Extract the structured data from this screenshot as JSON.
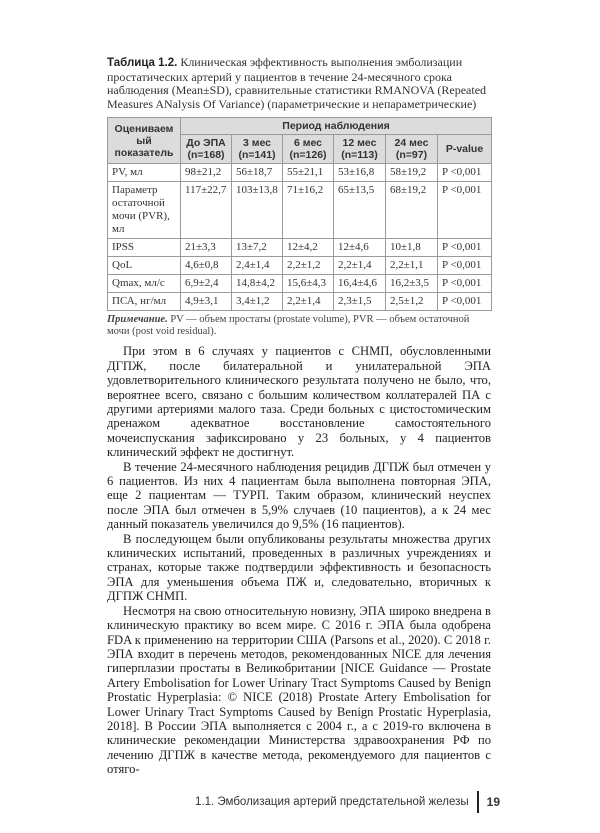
{
  "caption": {
    "label": "Таблица 1.2.",
    "text": " Клиническая эффективность выполнения эмболизации простатических артерий у пациентов в течение 24-месячного срока наблюдения (Mean±SD), сравнительные статистики RMANOVA (Repeated Measures ANalysis Of Variance) (параметрические и непараметрические)"
  },
  "table": {
    "header_param": "Оцениваемый показатель",
    "header_period": "Период наблюдения",
    "columns": [
      {
        "label": "До ЭПА",
        "n": "(n=168)"
      },
      {
        "label": "3 мес",
        "n": "(n=141)"
      },
      {
        "label": "6 мес",
        "n": "(n=126)"
      },
      {
        "label": "12 мес",
        "n": "(n=113)"
      },
      {
        "label": "24 мес",
        "n": "(n=97)"
      }
    ],
    "pvalue_header": "P-value",
    "rows": [
      {
        "name": "PV, мл",
        "values": [
          "98±21,2",
          "56±18,7",
          "55±21,1",
          "53±16,8",
          "58±19,2"
        ],
        "p": "P <0,001"
      },
      {
        "name": "Параметр остаточной мочи (PVR), мл",
        "values": [
          "117±22,7",
          "103±13,8",
          "71±16,2",
          "65±13,5",
          "68±19,2"
        ],
        "p": "P <0,001"
      },
      {
        "name": "IPSS",
        "values": [
          "21±3,3",
          "13±7,2",
          "12±4,2",
          "12±4,6",
          "10±1,8"
        ],
        "p": "P <0,001"
      },
      {
        "name": "QoL",
        "values": [
          "4,6±0,8",
          "2,4±1,4",
          "2,2±1,2",
          "2,2±1,4",
          "2,2±1,1"
        ],
        "p": "P <0,001"
      },
      {
        "name": "Qmax, мл/с",
        "values": [
          "6,9±2,4",
          "14,8±4,2",
          "15,6±4,3",
          "16,4±4,6",
          "16,2±3,5"
        ],
        "p": "P <0,001"
      },
      {
        "name": "ПСА, нг/мл",
        "values": [
          "4,9±3,1",
          "3,4±1,2",
          "2,2±1,4",
          "2,3±1,5",
          "2,5±1,2"
        ],
        "p": "P <0,001"
      }
    ]
  },
  "note": {
    "label": "Примечание.",
    "text": " PV — объем простаты (prostate volume), PVR — объем остаточной мочи (post void residual)."
  },
  "paragraphs": [
    "При этом в 6 случаях у пациентов с СНМП, обусловленными ДГПЖ, после билатеральной и унилатеральной ЭПА удовлетворительного клинического результата получено не было, что, вероятнее всего, связано с большим количеством коллатералей ПА с другими артериями малого таза. Среди больных с цистостомическим дренажом адекватное восстановление самостоятельного мочеиспускания зафиксировано у 23 больных, у 4 пациентов клинический эффект не достигнут.",
    "В течение 24-месячного наблюдения рецидив ДГПЖ был отмечен у 6 пациентов. Из них 4 пациентам была выполнена повторная ЭПА, еще 2 пациентам — ТУРП. Таким образом, клинический неуспех после ЭПА был отмечен в 5,9% случаев (10 пациентов), а к 24 мес данный показатель увеличился до 9,5% (16 пациентов).",
    "В последующем были опубликованы результаты множества других клинических испытаний, проведенных в различных учреждениях и странах, которые также подтвердили эффективность и безопасность ЭПА для уменьшения объема ПЖ и, следовательно, вторичных к ДГПЖ СНМП.",
    "Несмотря на свою относительную новизну, ЭПА широко внедрена в клиническую практику во всем мире. С 2016 г. ЭПА была одобрена FDA к применению на территории США (Parsons et al., 2020). С 2018 г. ЭПА входит в перечень методов, рекомендованных NICE для лечения гиперплазии простаты в Великобритании [NICE Guidance — Prostate Artery Embolisation for Lower Urinary Tract Symptoms Caused by Benign Prostatic Hyperplasia: © NICE (2018) Prostate Artery Embolisation for Lower Urinary Tract Symptoms Caused by Benign Prostatic Hyperplasia, 2018]. В России ЭПА выполняется с 2004 г., а с 2019-го включена в клинические рекомендации Министерства здравоохранения РФ по лечению ДГПЖ в качестве метода, рекомендуемого для пациентов с отяго-"
  ],
  "footer": {
    "section": "1.1. Эмболизация артерий предстательной железы",
    "page": "19"
  }
}
